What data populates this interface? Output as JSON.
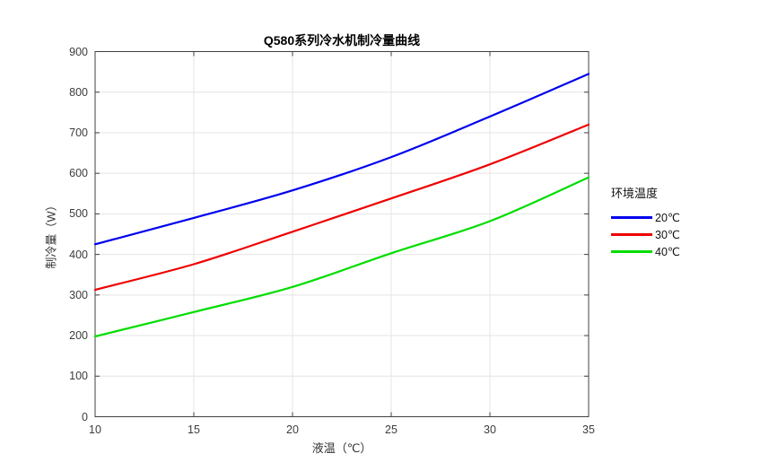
{
  "chart_data": {
    "type": "line",
    "title": "Q580系列冷水机制冷量曲线",
    "xlabel": "液温（℃）",
    "ylabel": "制冷量（W）",
    "legend_title": "环境温度",
    "legend_position": "outside-right",
    "grid": true,
    "box": true,
    "xlim": [
      10,
      35
    ],
    "ylim": [
      0,
      900
    ],
    "x_ticks": [
      10,
      15,
      20,
      25,
      30,
      35
    ],
    "y_ticks": [
      0,
      100,
      200,
      300,
      400,
      500,
      600,
      700,
      800,
      900
    ],
    "x": [
      10,
      15,
      20,
      25,
      30,
      35
    ],
    "series": [
      {
        "name": "20℃",
        "color": "#0000ee",
        "values": [
          425,
          490,
          558,
          640,
          740,
          845
        ]
      },
      {
        "name": "30℃",
        "color": "#ee0000",
        "values": [
          313,
          376,
          456,
          538,
          622,
          720
        ]
      },
      {
        "name": "40℃",
        "color": "#00dd00",
        "values": [
          198,
          258,
          320,
          403,
          482,
          590
        ]
      }
    ]
  },
  "colors": {
    "axis": "#404040",
    "grid": "#e4e4e4",
    "tick_text": "#3c3c3c",
    "background": "#ffffff"
  }
}
